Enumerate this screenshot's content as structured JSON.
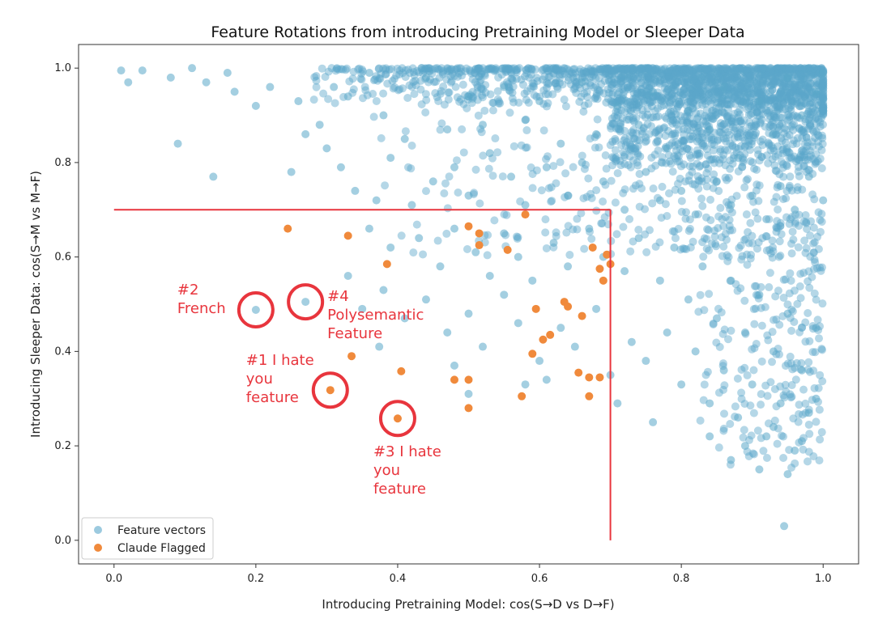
{
  "chart_data": {
    "type": "scatter",
    "title": "Feature Rotations from introducing Pretraining Model or Sleeper Data",
    "xlabel": "Introducing Pretraining Model: cos(S→D vs D→F)",
    "ylabel": "Introducing Sleeper Data: cos(S→M vs M→F)",
    "xlim": [
      -0.05,
      1.05
    ],
    "ylim": [
      -0.05,
      1.05
    ],
    "xticks": [
      "0.0",
      "0.2",
      "0.4",
      "0.6",
      "0.8",
      "1.0"
    ],
    "yticks": [
      "0.0",
      "0.2",
      "0.4",
      "0.6",
      "0.8",
      "1.0"
    ],
    "grid": false,
    "legend_position": "lower-left",
    "series": [
      {
        "name": "Feature vectors",
        "color": "#5aa7c9",
        "points": [
          [
            0.01,
            0.995
          ],
          [
            0.04,
            0.995
          ],
          [
            0.08,
            0.98
          ],
          [
            0.11,
            1.0
          ],
          [
            0.13,
            0.97
          ],
          [
            0.16,
            0.99
          ],
          [
            0.17,
            0.95
          ],
          [
            0.2,
            0.92
          ],
          [
            0.22,
            0.96
          ],
          [
            0.26,
            0.93
          ],
          [
            0.29,
            0.88
          ],
          [
            0.31,
            0.96
          ],
          [
            0.33,
            0.94
          ],
          [
            0.36,
            0.99
          ],
          [
            0.38,
            0.9
          ],
          [
            0.41,
            0.85
          ],
          [
            0.44,
            0.98
          ],
          [
            0.47,
            0.87
          ],
          [
            0.5,
            0.94
          ],
          [
            0.52,
            0.88
          ],
          [
            0.55,
            0.96
          ],
          [
            0.58,
            0.89
          ],
          [
            0.6,
            0.93
          ],
          [
            0.63,
            0.84
          ],
          [
            0.66,
            0.97
          ],
          [
            0.68,
            0.86
          ],
          [
            0.71,
            0.92
          ],
          [
            0.74,
            0.88
          ],
          [
            0.76,
            0.95
          ],
          [
            0.78,
            0.83
          ],
          [
            0.81,
            0.91
          ],
          [
            0.84,
            0.87
          ],
          [
            0.86,
            0.96
          ],
          [
            0.88,
            0.81
          ],
          [
            0.91,
            0.93
          ],
          [
            0.93,
            0.86
          ],
          [
            0.95,
            0.98
          ],
          [
            0.97,
            0.9
          ],
          [
            0.99,
            0.95
          ],
          [
            1.0,
            0.99
          ],
          [
            0.02,
            0.97
          ],
          [
            0.09,
            0.84
          ],
          [
            0.14,
            0.77
          ],
          [
            0.25,
            0.78
          ],
          [
            0.27,
            0.86
          ],
          [
            0.3,
            0.83
          ],
          [
            0.32,
            0.79
          ],
          [
            0.34,
            0.74
          ],
          [
            0.37,
            0.72
          ],
          [
            0.39,
            0.81
          ],
          [
            0.42,
            0.71
          ],
          [
            0.45,
            0.76
          ],
          [
            0.48,
            0.79
          ],
          [
            0.5,
            0.73
          ],
          [
            0.53,
            0.82
          ],
          [
            0.56,
            0.77
          ],
          [
            0.58,
            0.71
          ],
          [
            0.61,
            0.79
          ],
          [
            0.64,
            0.73
          ],
          [
            0.66,
            0.8
          ],
          [
            0.69,
            0.76
          ],
          [
            0.72,
            0.7
          ],
          [
            0.75,
            0.78
          ],
          [
            0.77,
            0.72
          ],
          [
            0.8,
            0.74
          ],
          [
            0.82,
            0.69
          ],
          [
            0.85,
            0.76
          ],
          [
            0.87,
            0.71
          ],
          [
            0.9,
            0.73
          ],
          [
            0.92,
            0.68
          ],
          [
            0.94,
            0.75
          ],
          [
            0.96,
            0.7
          ],
          [
            0.98,
            0.77
          ],
          [
            1.0,
            0.72
          ],
          [
            0.36,
            0.66
          ],
          [
            0.39,
            0.62
          ],
          [
            0.43,
            0.64
          ],
          [
            0.46,
            0.58
          ],
          [
            0.48,
            0.66
          ],
          [
            0.51,
            0.61
          ],
          [
            0.53,
            0.56
          ],
          [
            0.55,
            0.65
          ],
          [
            0.57,
            0.6
          ],
          [
            0.59,
            0.55
          ],
          [
            0.62,
            0.63
          ],
          [
            0.64,
            0.58
          ],
          [
            0.67,
            0.66
          ],
          [
            0.69,
            0.6
          ],
          [
            0.72,
            0.57
          ],
          [
            0.74,
            0.64
          ],
          [
            0.77,
            0.55
          ],
          [
            0.79,
            0.62
          ],
          [
            0.81,
            0.51
          ],
          [
            0.83,
            0.58
          ],
          [
            0.85,
            0.47
          ],
          [
            0.87,
            0.55
          ],
          [
            0.89,
            0.44
          ],
          [
            0.91,
            0.52
          ],
          [
            0.93,
            0.4
          ],
          [
            0.95,
            0.48
          ],
          [
            0.97,
            0.36
          ],
          [
            0.99,
            0.45
          ],
          [
            0.33,
            0.56
          ],
          [
            0.35,
            0.49
          ],
          [
            0.38,
            0.53
          ],
          [
            0.41,
            0.47
          ],
          [
            0.44,
            0.51
          ],
          [
            0.47,
            0.44
          ],
          [
            0.5,
            0.48
          ],
          [
            0.52,
            0.41
          ],
          [
            0.55,
            0.52
          ],
          [
            0.57,
            0.46
          ],
          [
            0.6,
            0.38
          ],
          [
            0.63,
            0.45
          ],
          [
            0.65,
            0.41
          ],
          [
            0.68,
            0.49
          ],
          [
            0.7,
            0.35
          ],
          [
            0.73,
            0.42
          ],
          [
            0.75,
            0.38
          ],
          [
            0.78,
            0.44
          ],
          [
            0.8,
            0.33
          ],
          [
            0.82,
            0.4
          ],
          [
            0.84,
            0.29
          ],
          [
            0.86,
            0.36
          ],
          [
            0.88,
            0.26
          ],
          [
            0.9,
            0.33
          ],
          [
            0.92,
            0.22
          ],
          [
            0.94,
            0.29
          ],
          [
            0.96,
            0.19
          ],
          [
            0.98,
            0.27
          ],
          [
            0.84,
            0.22
          ],
          [
            0.87,
            0.17
          ],
          [
            0.89,
            0.2
          ],
          [
            0.91,
            0.15
          ],
          [
            0.93,
            0.24
          ],
          [
            0.95,
            0.14
          ],
          [
            0.97,
            0.21
          ],
          [
            0.99,
            0.3
          ],
          [
            0.48,
            0.37
          ],
          [
            0.5,
            0.31
          ],
          [
            0.58,
            0.33
          ],
          [
            0.61,
            0.34
          ],
          [
            0.71,
            0.29
          ],
          [
            0.76,
            0.25
          ],
          [
            0.2,
            0.488
          ],
          [
            0.27,
            0.505
          ],
          [
            0.374,
            0.41
          ],
          [
            0.945,
            0.03
          ]
        ]
      },
      {
        "name": "Claude Flagged",
        "color": "#f08a3c",
        "points": [
          [
            0.245,
            0.66
          ],
          [
            0.33,
            0.645
          ],
          [
            0.385,
            0.585
          ],
          [
            0.335,
            0.39
          ],
          [
            0.305,
            0.318
          ],
          [
            0.4,
            0.258
          ],
          [
            0.405,
            0.358
          ],
          [
            0.48,
            0.34
          ],
          [
            0.5,
            0.34
          ],
          [
            0.5,
            0.28
          ],
          [
            0.5,
            0.665
          ],
          [
            0.515,
            0.65
          ],
          [
            0.515,
            0.625
          ],
          [
            0.555,
            0.615
          ],
          [
            0.58,
            0.69
          ],
          [
            0.575,
            0.305
          ],
          [
            0.59,
            0.395
          ],
          [
            0.595,
            0.49
          ],
          [
            0.605,
            0.425
          ],
          [
            0.615,
            0.435
          ],
          [
            0.635,
            0.505
          ],
          [
            0.64,
            0.495
          ],
          [
            0.66,
            0.475
          ],
          [
            0.655,
            0.355
          ],
          [
            0.67,
            0.345
          ],
          [
            0.67,
            0.305
          ],
          [
            0.685,
            0.345
          ],
          [
            0.675,
            0.62
          ],
          [
            0.685,
            0.575
          ],
          [
            0.69,
            0.55
          ],
          [
            0.695,
            0.605
          ],
          [
            0.7,
            0.585
          ]
        ]
      }
    ],
    "dense_cluster": {
      "series": "Feature vectors",
      "region_note": "very dense band of points near y = 0.95–1.0 for x = 0.3–1.0 and a dense block for x = 0.7–1.0, y = 0.8–1.0"
    },
    "reference_lines": [
      {
        "from": [
          0.0,
          0.7
        ],
        "to": [
          0.7,
          0.7
        ],
        "color": "#e8353d"
      },
      {
        "from": [
          0.7,
          0.7
        ],
        "to": [
          0.7,
          0.0
        ],
        "color": "#e8353d"
      }
    ],
    "annotations": [
      {
        "id": "ann-2",
        "lines": [
          "#2",
          "French"
        ],
        "point": [
          0.2,
          0.488
        ]
      },
      {
        "id": "ann-4",
        "lines": [
          "#4",
          "Polysemantic",
          "Feature"
        ],
        "point": [
          0.27,
          0.505
        ]
      },
      {
        "id": "ann-1",
        "lines": [
          "#1 I hate",
          "you",
          "feature"
        ],
        "point": [
          0.305,
          0.318
        ]
      },
      {
        "id": "ann-3",
        "lines": [
          "#3 I hate",
          "you",
          "feature"
        ],
        "point": [
          0.4,
          0.258
        ]
      }
    ],
    "annotation_color": "#e8353d"
  }
}
